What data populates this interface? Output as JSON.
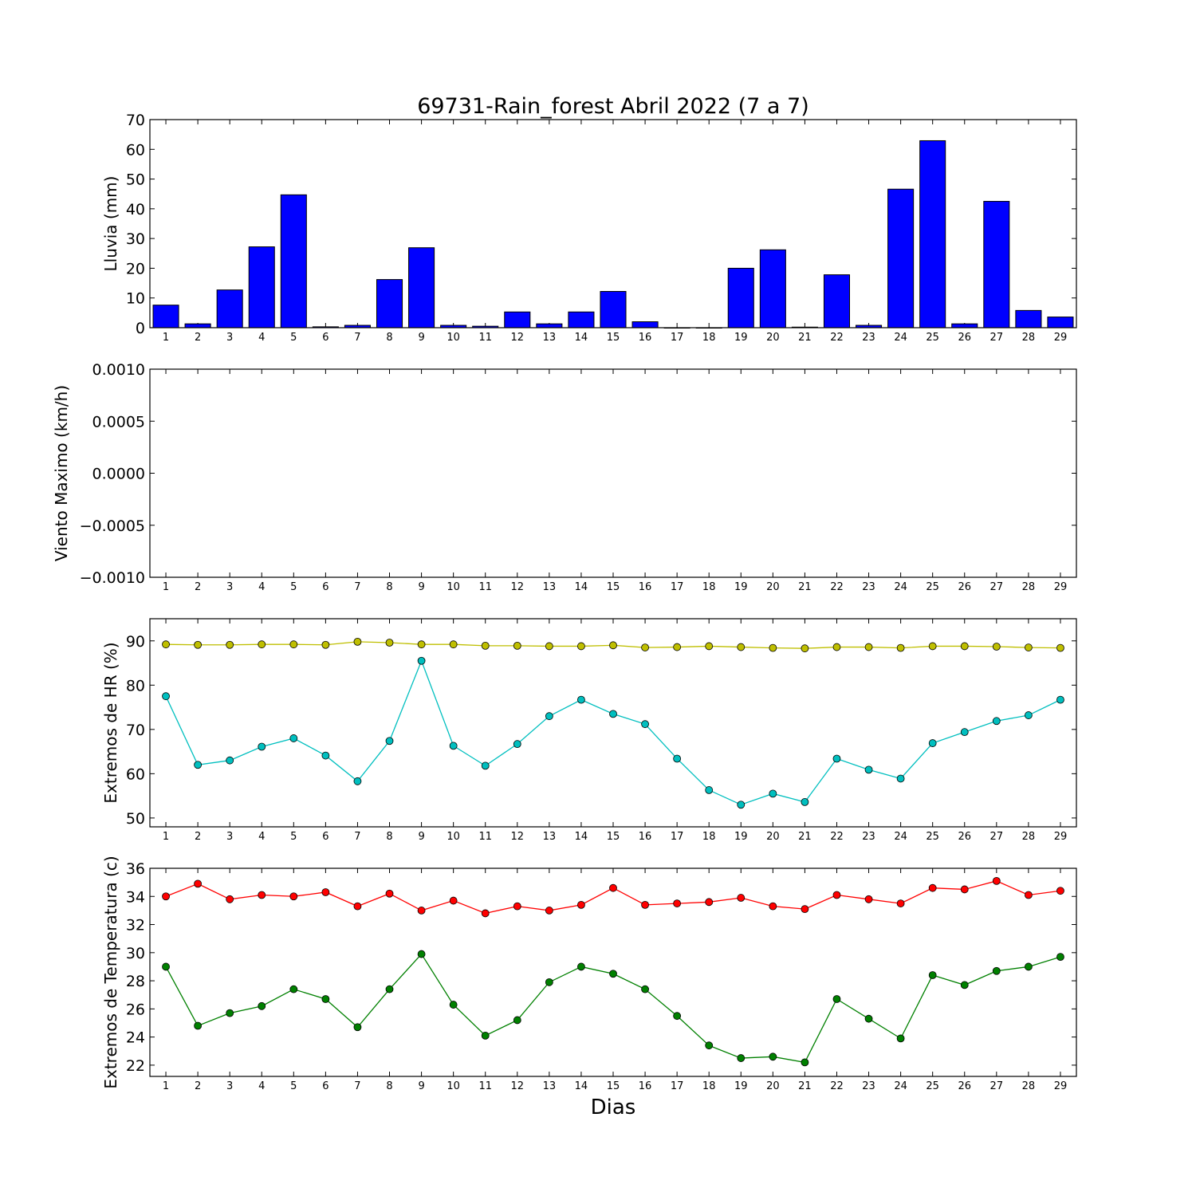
{
  "title": "69731-Rain_forest Abril 2022  (7 a 7)",
  "xlabel": "Dias",
  "colors": {
    "rain_bar": "#0000ff",
    "hr_max": "#bfbf00",
    "hr_min": "#00bfbf",
    "t_max": "#ff0000",
    "t_min": "#008000"
  },
  "chart_data": [
    {
      "type": "bar",
      "ylabel": "Lluvia (mm)",
      "ylim": [
        0,
        70
      ],
      "yticks": [
        "0",
        "10",
        "20",
        "30",
        "40",
        "50",
        "60",
        "70"
      ],
      "categories": [
        "1",
        "2",
        "3",
        "4",
        "5",
        "6",
        "7",
        "8",
        "9",
        "10",
        "11",
        "12",
        "13",
        "14",
        "15",
        "16",
        "17",
        "18",
        "19",
        "20",
        "21",
        "22",
        "23",
        "24",
        "25",
        "26",
        "27",
        "28",
        "29"
      ],
      "series": [
        {
          "values": [
            7.6,
            1.3,
            12.7,
            27.2,
            44.7,
            0.3,
            0.8,
            16.2,
            26.9,
            0.8,
            0.5,
            5.3,
            1.3,
            5.3,
            12.2,
            2.0,
            0.0,
            0.0,
            20.0,
            26.2,
            0.2,
            17.8,
            0.8,
            46.6,
            62.9,
            1.3,
            42.5,
            5.8,
            3.6
          ]
        }
      ]
    },
    {
      "type": "line",
      "ylabel": "Viento Maximo (km/h)",
      "ylim": [
        -0.001,
        0.001
      ],
      "yticks": [
        "0.0010",
        "0.0005",
        "0.0000",
        "−0.0005",
        "−0.0010"
      ],
      "categories": [
        "1",
        "2",
        "3",
        "4",
        "5",
        "6",
        "7",
        "8",
        "9",
        "10",
        "11",
        "12",
        "13",
        "14",
        "15",
        "16",
        "17",
        "18",
        "19",
        "20",
        "21",
        "22",
        "23",
        "24",
        "25",
        "26",
        "27",
        "28",
        "29"
      ],
      "series": []
    },
    {
      "type": "line",
      "ylabel": "Extremos de HR (%)",
      "ylim": [
        48,
        95
      ],
      "yticks": [
        "50",
        "60",
        "70",
        "80",
        "90"
      ],
      "categories": [
        "1",
        "2",
        "3",
        "4",
        "5",
        "6",
        "7",
        "8",
        "9",
        "10",
        "11",
        "12",
        "13",
        "14",
        "15",
        "16",
        "17",
        "18",
        "19",
        "20",
        "21",
        "22",
        "23",
        "24",
        "25",
        "26",
        "27",
        "28",
        "29"
      ],
      "series": [
        {
          "key": "hr_max",
          "values": [
            89.2,
            89.1,
            89.1,
            89.2,
            89.2,
            89.1,
            89.8,
            89.6,
            89.2,
            89.2,
            88.9,
            88.9,
            88.8,
            88.8,
            89.0,
            88.5,
            88.6,
            88.8,
            88.6,
            88.4,
            88.3,
            88.6,
            88.6,
            88.4,
            88.8,
            88.8,
            88.7,
            88.5,
            88.4
          ]
        },
        {
          "key": "hr_min",
          "values": [
            77.5,
            62.0,
            63.0,
            66.1,
            68.0,
            64.1,
            58.3,
            67.4,
            85.5,
            66.3,
            61.8,
            66.7,
            73.0,
            76.7,
            73.5,
            71.2,
            63.4,
            56.3,
            53.0,
            55.5,
            53.6,
            63.4,
            60.9,
            58.9,
            66.9,
            69.4,
            71.9,
            73.2,
            76.7
          ]
        }
      ]
    },
    {
      "type": "line",
      "ylabel": "Extremos de Temperatura (c)",
      "ylim": [
        21.2,
        36.0
      ],
      "yticks": [
        "22",
        "24",
        "26",
        "28",
        "30",
        "32",
        "34",
        "36"
      ],
      "categories": [
        "1",
        "2",
        "3",
        "4",
        "5",
        "6",
        "7",
        "8",
        "9",
        "10",
        "11",
        "12",
        "13",
        "14",
        "15",
        "16",
        "17",
        "18",
        "19",
        "20",
        "21",
        "22",
        "23",
        "24",
        "25",
        "26",
        "27",
        "28",
        "29"
      ],
      "series": [
        {
          "key": "t_max",
          "values": [
            34.0,
            34.9,
            33.8,
            34.1,
            34.0,
            34.3,
            33.3,
            34.2,
            33.0,
            33.7,
            32.8,
            33.3,
            33.0,
            33.4,
            34.6,
            33.4,
            33.5,
            33.6,
            33.9,
            33.3,
            33.1,
            34.1,
            33.8,
            33.5,
            34.6,
            34.5,
            35.1,
            34.1,
            34.4
          ]
        },
        {
          "key": "t_min",
          "values": [
            29.0,
            24.8,
            25.7,
            26.2,
            27.4,
            26.7,
            24.7,
            27.4,
            29.9,
            26.3,
            24.1,
            25.2,
            27.9,
            29.0,
            28.5,
            27.4,
            25.5,
            23.4,
            22.5,
            22.6,
            22.2,
            26.7,
            25.3,
            23.9,
            28.4,
            27.7,
            28.7,
            29.0,
            29.7
          ]
        }
      ]
    }
  ]
}
